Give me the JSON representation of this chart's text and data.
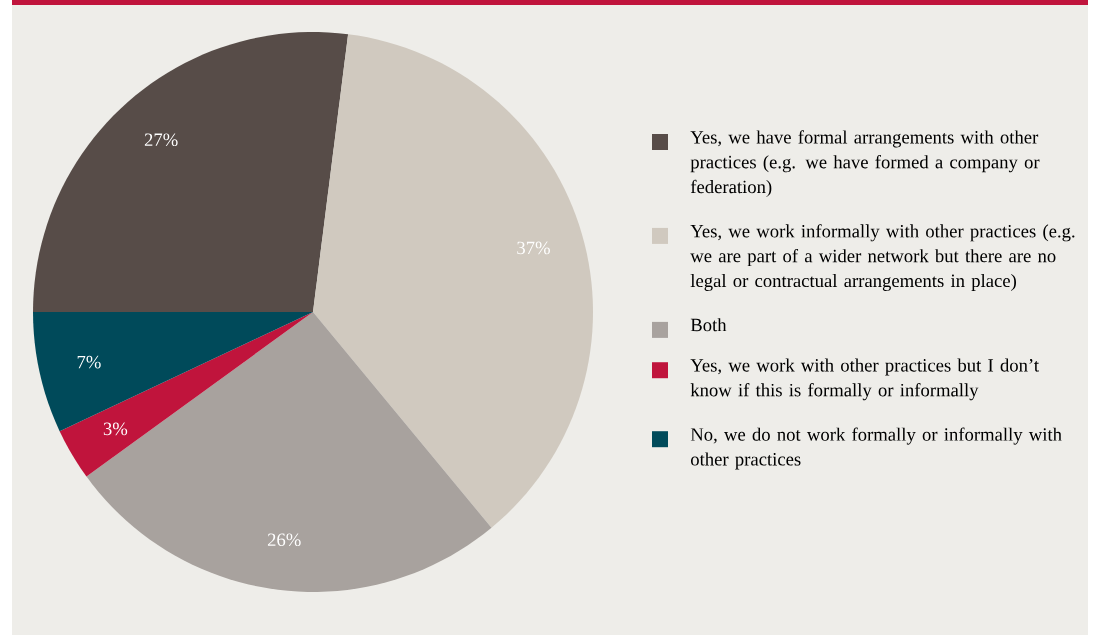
{
  "chart_data": {
    "type": "pie",
    "categories": [
      "Yes, we have formal arrangements with other practices (e.g. we have formed a company or federation)",
      "Yes, we work informally with other practices (e.g. we are part of a wider network but there are no legal or contractual arrangements in place)",
      "Both",
      "Yes, we work with other practices but I don’t know if this is formally or informally",
      "No, we do not work formally or informally with other practices"
    ],
    "values": [
      27,
      37,
      26,
      3,
      7
    ],
    "value_labels": [
      "27%",
      "37%",
      "26%",
      "3%",
      "7%"
    ],
    "colors": [
      "#574c48",
      "#d0c9bf",
      "#a8a29e",
      "#c0143c",
      "#004a5a"
    ],
    "legend": "right"
  }
}
